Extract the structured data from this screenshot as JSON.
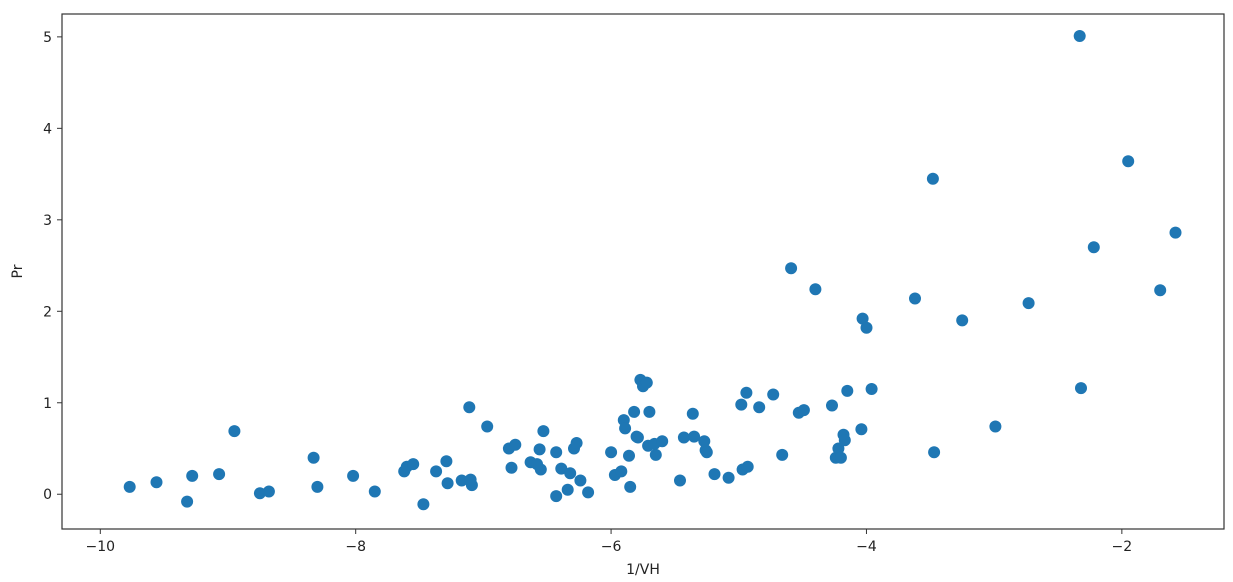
{
  "chart_data": {
    "type": "scatter",
    "title": "",
    "xlabel": "1/VH",
    "ylabel": "Pr",
    "xlim": [
      -10.3,
      -1.2
    ],
    "ylim": [
      -0.38,
      5.25
    ],
    "xticks": [
      -10,
      -8,
      -6,
      -4,
      -2
    ],
    "yticks": [
      0,
      1,
      2,
      3,
      4,
      5
    ],
    "xtick_labels": [
      "−10",
      "−8",
      "−6",
      "−4",
      "−2"
    ],
    "ytick_labels": [
      "0",
      "1",
      "2",
      "3",
      "4",
      "5"
    ],
    "grid": false,
    "marker_color": "#1f77b4",
    "series": [
      {
        "x": [
          -9.77,
          -9.56,
          -9.32,
          -9.28,
          -9.07,
          -8.95,
          -8.75,
          -8.68,
          -8.33,
          -8.3,
          -8.02,
          -7.85,
          -7.62,
          -7.6,
          -7.55,
          -7.47,
          -7.37,
          -7.29,
          -7.28,
          -7.17,
          -7.11,
          -7.09,
          -7.1,
          -6.97,
          -6.8,
          -6.78,
          -6.75,
          -6.63,
          -6.58,
          -6.56,
          -6.55,
          -6.53,
          -6.43,
          -6.43,
          -6.39,
          -6.34,
          -6.32,
          -6.29,
          -6.27,
          -6.24,
          -6.18,
          -6.0,
          -5.97,
          -5.92,
          -5.9,
          -5.89,
          -5.86,
          -5.85,
          -5.82,
          -5.8,
          -5.79,
          -5.77,
          -5.75,
          -5.72,
          -5.71,
          -5.7,
          -5.66,
          -5.65,
          -5.6,
          -5.46,
          -5.43,
          -5.36,
          -5.35,
          -5.27,
          -5.26,
          -5.25,
          -5.19,
          -5.08,
          -4.98,
          -4.97,
          -4.94,
          -4.93,
          -4.84,
          -4.73,
          -4.66,
          -4.59,
          -4.53,
          -4.49,
          -4.4,
          -4.27,
          -4.24,
          -4.22,
          -4.2,
          -4.18,
          -4.17,
          -4.15,
          -4.04,
          -4.03,
          -4.0,
          -3.96,
          -3.62,
          -3.48,
          -3.47,
          -3.25,
          -2.99,
          -2.73,
          -2.33,
          -2.32,
          -2.22,
          -1.95,
          -1.7,
          -1.58
        ],
        "y": [
          0.08,
          0.13,
          -0.08,
          0.2,
          0.22,
          0.69,
          0.01,
          0.03,
          0.4,
          0.08,
          0.2,
          0.03,
          0.25,
          0.3,
          0.33,
          -0.11,
          0.25,
          0.36,
          0.12,
          0.15,
          0.95,
          0.1,
          0.16,
          0.74,
          0.5,
          0.29,
          0.54,
          0.35,
          0.33,
          0.49,
          0.27,
          0.69,
          -0.02,
          0.46,
          0.28,
          0.05,
          0.23,
          0.5,
          0.56,
          0.15,
          0.02,
          0.46,
          0.21,
          0.25,
          0.81,
          0.72,
          0.42,
          0.08,
          0.9,
          0.63,
          0.62,
          1.25,
          1.18,
          1.22,
          0.53,
          0.9,
          0.55,
          0.43,
          0.58,
          0.15,
          0.62,
          0.88,
          0.63,
          0.58,
          0.48,
          0.46,
          0.22,
          0.18,
          0.98,
          0.27,
          1.11,
          0.3,
          0.95,
          1.09,
          0.43,
          2.47,
          0.89,
          0.92,
          2.24,
          0.97,
          0.4,
          0.5,
          0.4,
          0.65,
          0.59,
          1.13,
          0.71,
          1.92,
          1.82,
          1.15,
          2.14,
          3.45,
          0.46,
          1.9,
          0.74,
          2.09,
          5.01,
          1.16,
          2.7,
          3.64,
          2.23,
          2.86
        ]
      }
    ]
  }
}
